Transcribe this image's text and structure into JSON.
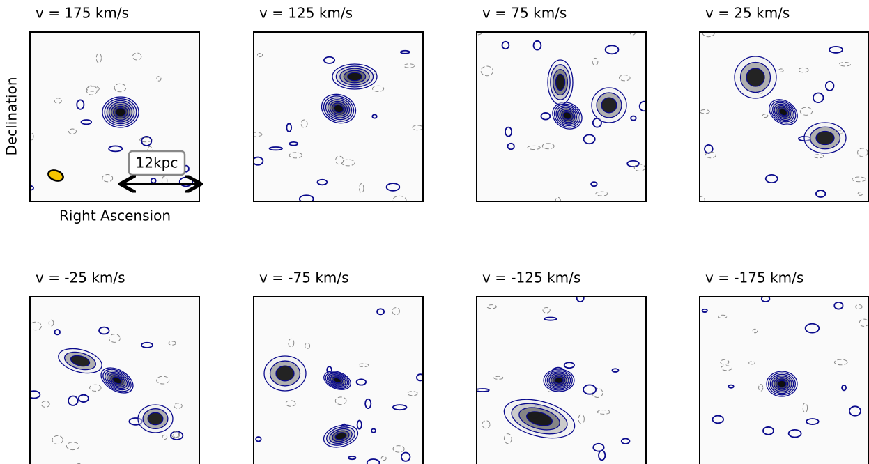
{
  "panels": [
    {
      "label": "v = 175 km/s"
    },
    {
      "label": "v = 125 km/s"
    },
    {
      "label": "v = 75 km/s"
    },
    {
      "label": "v = 25 km/s"
    },
    {
      "label": "v = -25 km/s"
    },
    {
      "label": "v = -75 km/s"
    },
    {
      "label": "v = -125 km/s"
    },
    {
      "label": "v = -175 km/s"
    }
  ],
  "axes": {
    "y_label": "Declination",
    "x_label": "Right Ascension"
  },
  "scale_bar": "12kpc"
}
